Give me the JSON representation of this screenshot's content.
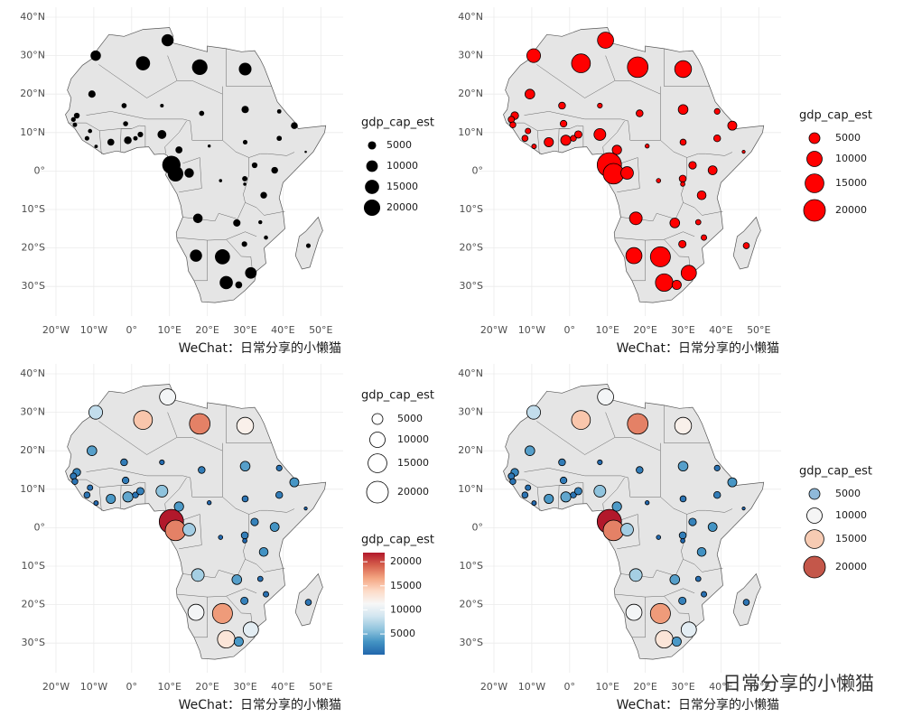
{
  "xticks": [
    {
      "value": -20,
      "label": "20°W"
    },
    {
      "value": -10,
      "label": "10°W"
    },
    {
      "value": 0,
      "label": "0°"
    },
    {
      "value": 10,
      "label": "10°E"
    },
    {
      "value": 20,
      "label": "20°E"
    },
    {
      "value": 30,
      "label": "30°E"
    },
    {
      "value": 40,
      "label": "40°E"
    },
    {
      "value": 50,
      "label": "50°E"
    }
  ],
  "yticks": [
    {
      "value": -30,
      "label": "30°S"
    },
    {
      "value": -20,
      "label": "20°S"
    },
    {
      "value": -10,
      "label": "10°S"
    },
    {
      "value": 0,
      "label": "0°"
    },
    {
      "value": 10,
      "label": "10°N"
    },
    {
      "value": 20,
      "label": "20°N"
    },
    {
      "value": 30,
      "label": "30°N"
    },
    {
      "value": 40,
      "label": "40°N"
    }
  ],
  "caption": "WeChat：日常分享的小懒猫",
  "watermark": "日常分享的小懒猫",
  "points": {
    "lon": [
      3,
      18,
      30,
      -9.5,
      9.5,
      -10.5,
      -2,
      8,
      18.5,
      30,
      39,
      39,
      43,
      46,
      -14.5,
      -15.4,
      -15,
      -11,
      -11.8,
      -9.4,
      -5.5,
      -1.6,
      -1,
      1,
      2.3,
      8,
      12.5,
      20.5,
      30,
      10.5,
      11.6,
      15.2,
      23.5,
      32.5,
      37.8,
      29.9,
      29.9,
      34.9,
      17.5,
      27.8,
      34,
      35.5,
      29.8,
      24,
      17,
      25,
      28.3,
      31.5,
      46.7
    ],
    "lat": [
      28,
      27,
      26.5,
      30,
      34,
      20,
      17,
      17,
      15,
      16,
      15.5,
      8.5,
      11.8,
      5,
      14.4,
      13.4,
      12,
      10.4,
      8.5,
      6.4,
      7.5,
      12.3,
      8,
      8.5,
      9.5,
      9.5,
      5.5,
      6.5,
      7.5,
      1.6,
      -0.7,
      -0.5,
      -2.5,
      1.5,
      0.2,
      -2,
      -3.4,
      -6.3,
      -12.3,
      -13.5,
      -13.3,
      -17.3,
      -19,
      -22.3,
      -22,
      -29,
      -29.6,
      -26.5,
      -19.4
    ],
    "gdp": [
      15000,
      18000,
      12000,
      8000,
      11000,
      4000,
      2000,
      1000,
      2000,
      4000,
      1400,
      2000,
      3500,
      400,
      2500,
      1700,
      1500,
      1300,
      1600,
      900,
      3600,
      1900,
      4400,
      1500,
      2300,
      5900,
      3700,
      700,
      1600,
      25000,
      18000,
      6700,
      800,
      2400,
      3400,
      2100,
      800,
      3300,
      6800,
      4000,
      1200,
      1300,
      2300,
      17000,
      11000,
      13000,
      3600,
      9900,
      1600
    ]
  },
  "palette": [
    "#2166ac",
    "#4393c3",
    "#92c5de",
    "#d1e5f0",
    "#f7f7f7",
    "#fddbc7",
    "#f4a582",
    "#d6604d",
    "#b2182b"
  ],
  "panels": [
    {
      "fill": "#000000",
      "legend_title": "gdp_cap_est",
      "legend_values": [
        5000,
        10000,
        15000,
        20000
      ]
    },
    {
      "fill": "#ff0000",
      "legend_title": "gdp_cap_est",
      "legend_values": [
        5000,
        10000,
        15000,
        20000
      ]
    },
    {
      "fill": "scale",
      "legend_title": "gdp_cap_est",
      "legend_values": [
        5000,
        10000,
        15000,
        20000
      ],
      "legend_fill": "#ffffff",
      "colorbar": {
        "title": "gdp_cap_est",
        "ticks": [
          5000,
          10000,
          15000,
          20000
        ],
        "lim": [
          700,
          21900
        ]
      }
    },
    {
      "fill": "scale",
      "legend_title": "gdp_cap_est",
      "legend_values": [
        5000,
        10000,
        15000,
        20000
      ],
      "legend_colors": [
        "#8fb9da",
        "#f5f5f5",
        "#f7cbb3",
        "#c4574a"
      ]
    }
  ]
}
